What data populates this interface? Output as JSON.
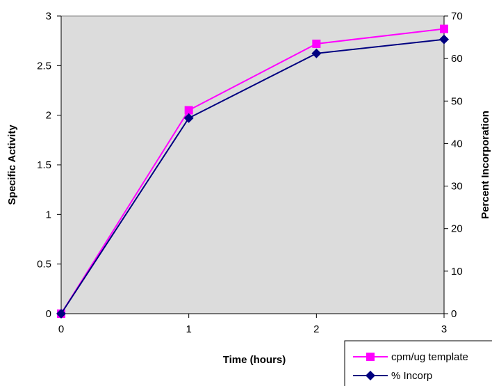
{
  "chart_data": {
    "type": "line",
    "title": "",
    "xlabel": "Time (hours)",
    "ylabel": "Specific Activity",
    "y2label": "Percent Incorporation",
    "x": [
      0,
      1,
      2,
      3
    ],
    "xlim": [
      0,
      3
    ],
    "ylim": [
      0,
      3
    ],
    "y2lim": [
      0,
      70
    ],
    "x_ticks": [
      "0",
      "1",
      "2",
      "3"
    ],
    "y_ticks": [
      "0",
      "0.5",
      "1",
      "1.5",
      "2",
      "2.5",
      "3"
    ],
    "y2_ticks": [
      "0",
      "10",
      "20",
      "30",
      "40",
      "50",
      "60",
      "70"
    ],
    "grid": false,
    "legend_position": "bottom-right",
    "plot_background": "#dcdcdc",
    "series": [
      {
        "name": "cpm/ug template",
        "axis": "left",
        "values": [
          0,
          2.05,
          2.72,
          2.87
        ],
        "color": "#ff00ff",
        "marker": "square"
      },
      {
        "name": "% Incorp",
        "axis": "right",
        "values": [
          0,
          46,
          61.2,
          64.5
        ],
        "color": "#000080",
        "marker": "diamond"
      }
    ]
  }
}
